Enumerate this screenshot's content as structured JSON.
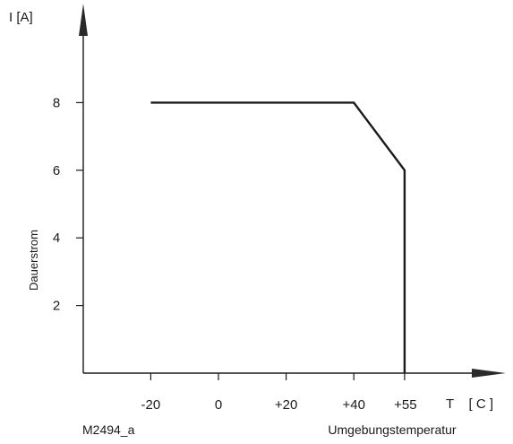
{
  "chart_data": {
    "type": "line",
    "y_unit_label": "I  [A]",
    "ylabel": "Dauerstrom",
    "x_unit_label": "T    [ C ]",
    "xlabel": "Umgebungstemperatur",
    "figure_id": "M2494_a",
    "x_ticks": [
      -20,
      0,
      20,
      40,
      55
    ],
    "x_tick_labels": [
      "-20",
      "0",
      "+20",
      "+40",
      "+55"
    ],
    "y_ticks": [
      2,
      4,
      6,
      8
    ],
    "y_tick_labels": [
      "2",
      "4",
      "6",
      "8"
    ],
    "series": [
      {
        "x": [
          -20,
          40,
          55,
          55
        ],
        "y": [
          8,
          8,
          6,
          0
        ]
      }
    ],
    "grid": false,
    "colors": {
      "line": "#1a1a1a",
      "axis": "#1a1a1a"
    }
  }
}
